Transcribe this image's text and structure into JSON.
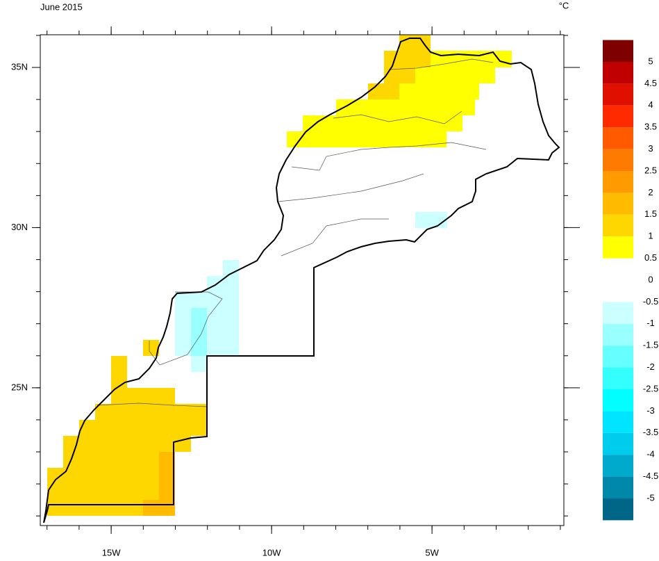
{
  "map": {
    "title": "June 2015",
    "unit": "°C",
    "xlim": [
      -17.21,
      -0.89
    ],
    "ylim": [
      20.7,
      36.02
    ],
    "xticks": [
      {
        "value": -15,
        "label": "15W"
      },
      {
        "value": -10,
        "label": "10W"
      },
      {
        "value": -5,
        "label": "5W"
      }
    ],
    "yticks": [
      {
        "value": 25,
        "label": "25N"
      },
      {
        "value": 30,
        "label": "30N"
      },
      {
        "value": 35,
        "label": "35N"
      }
    ],
    "xminorticks": [
      -17,
      -16,
      -15,
      -14,
      -13,
      -12,
      -11,
      -10,
      -9,
      -8,
      -7,
      -6,
      -5,
      -4,
      -3,
      -2,
      -1
    ],
    "yminorticks": [
      21,
      22,
      23,
      24,
      25,
      26,
      27,
      28,
      29,
      30,
      31,
      32,
      33,
      34,
      35,
      36
    ],
    "colorbar": {
      "levels": [
        5,
        4.5,
        4,
        3.5,
        3,
        2.5,
        2,
        1.5,
        1,
        0.5,
        0,
        -0.5,
        -1,
        -1.5,
        -2,
        -2.5,
        -3,
        -3.5,
        -4,
        -4.5,
        -5
      ],
      "colors": [
        "#7f0000",
        "#c00000",
        "#e01000",
        "#ff2a00",
        "#ff5a00",
        "#ff7a00",
        "#ff9a00",
        "#ffbb00",
        "#ffd700",
        "#ffff00",
        null,
        null,
        "#ccffff",
        "#99ffff",
        "#66ffff",
        "#33ffff",
        "#00ffff",
        "#00e5ff",
        "#00ccee",
        "#00aacc",
        "#0088aa",
        "#006688"
      ]
    }
  }
}
